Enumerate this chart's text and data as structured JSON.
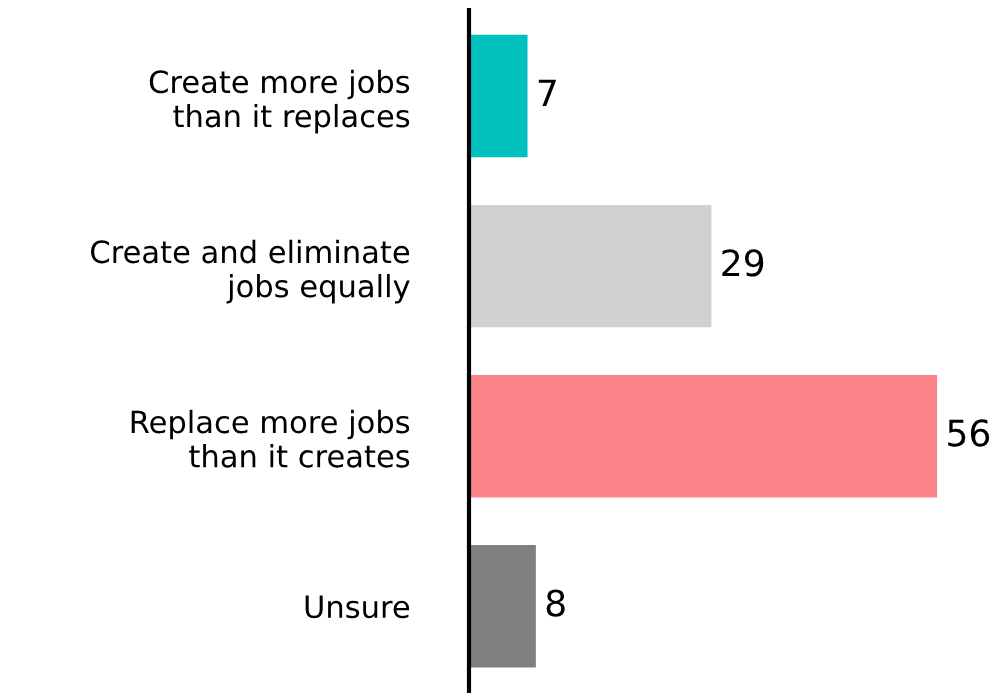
{
  "chart_data": {
    "type": "bar",
    "orientation": "horizontal",
    "categories": [
      "Create more jobs\nthan it replaces",
      "Create and eliminate\njobs equally",
      "Replace more jobs\nthan it creates",
      "Unsure"
    ],
    "values": [
      7,
      29,
      56,
      8
    ],
    "colors": [
      "#00bfbd",
      "#d1cfd0",
      "#fb8489",
      "#808080"
    ],
    "data_labels": true,
    "grid": false,
    "legend": false,
    "tick_labels": "y"
  }
}
